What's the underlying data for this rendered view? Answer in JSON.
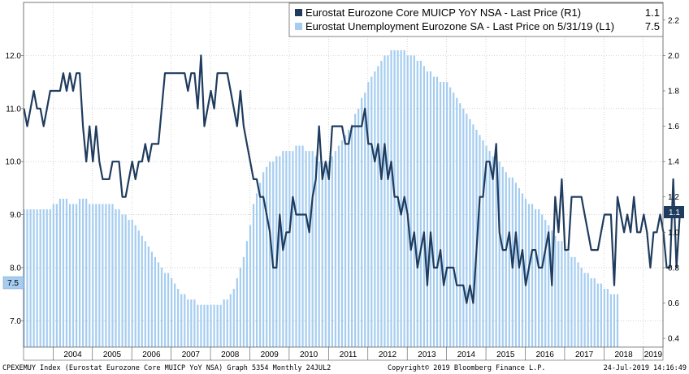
{
  "chart_data": {
    "type": "bar+line",
    "legend": {
      "placement": "top-right",
      "entries": [
        {
          "label": "Eurostat Eurozone Core MUICP YoY NSA - Last Price (R1)",
          "value": "1.1",
          "color": "#1f3c5e"
        },
        {
          "label": "Eurostat Unemployment Eurozone SA - Last Price on 5/31/19 (L1)",
          "value": "7.5",
          "color": "#a6cdf0"
        }
      ]
    },
    "x_axis": {
      "labels": [
        "2004",
        "2005",
        "2006",
        "2007",
        "2008",
        "2009",
        "2010",
        "2011",
        "2012",
        "2013",
        "2014",
        "2015",
        "2016",
        "2017",
        "2018",
        "2019"
      ],
      "start": "2003-04",
      "frequency": "monthly"
    },
    "left_axis": {
      "ylim": [
        6.5,
        13.0
      ],
      "ticks": [
        "7.0",
        "8.0",
        "9.0",
        "10.0",
        "11.0",
        "12.0"
      ],
      "last_value_tag": "7.5"
    },
    "right_axis": {
      "ylim": [
        0.35,
        2.3
      ],
      "ticks": [
        "0.4",
        "0.6",
        "0.8",
        "1.0",
        "1.2",
        "1.4",
        "1.6",
        "1.8",
        "2.0",
        "2.2"
      ],
      "last_value_tag": "1.1"
    },
    "grid": true,
    "series": [
      {
        "name": "Eurostat Unemployment Eurozone SA",
        "type": "bar",
        "axis": "left",
        "color": "#a6cdf0",
        "start": "2003-04",
        "values": [
          9.1,
          9.1,
          9.1,
          9.1,
          9.1,
          9.1,
          9.1,
          9.1,
          9.1,
          9.2,
          9.2,
          9.3,
          9.3,
          9.3,
          9.2,
          9.2,
          9.2,
          9.3,
          9.3,
          9.3,
          9.2,
          9.2,
          9.2,
          9.2,
          9.2,
          9.2,
          9.2,
          9.2,
          9.1,
          9.1,
          9.0,
          9.0,
          8.9,
          8.9,
          8.8,
          8.7,
          8.6,
          8.5,
          8.4,
          8.3,
          8.2,
          8.1,
          8.0,
          7.9,
          7.9,
          7.8,
          7.7,
          7.6,
          7.5,
          7.5,
          7.4,
          7.4,
          7.4,
          7.3,
          7.3,
          7.3,
          7.3,
          7.3,
          7.3,
          7.3,
          7.3,
          7.4,
          7.4,
          7.5,
          7.6,
          7.8,
          8.0,
          8.2,
          8.5,
          8.8,
          9.2,
          9.4,
          9.6,
          9.8,
          9.9,
          10.0,
          10.0,
          10.1,
          10.1,
          10.2,
          10.2,
          10.2,
          10.2,
          10.3,
          10.3,
          10.3,
          10.2,
          10.2,
          10.2,
          10.1,
          10.0,
          10.0,
          10.0,
          10.0,
          10.1,
          10.2,
          10.3,
          10.4,
          10.5,
          10.6,
          10.7,
          10.9,
          11.0,
          11.2,
          11.3,
          11.5,
          11.6,
          11.7,
          11.8,
          11.9,
          12.0,
          12.0,
          12.1,
          12.1,
          12.1,
          12.1,
          12.1,
          12.0,
          12.0,
          12.0,
          11.9,
          11.9,
          11.8,
          11.7,
          11.7,
          11.6,
          11.6,
          11.5,
          11.5,
          11.5,
          11.4,
          11.3,
          11.2,
          11.1,
          11.0,
          10.9,
          10.8,
          10.7,
          10.6,
          10.5,
          10.4,
          10.3,
          10.2,
          10.1,
          10.1,
          10.0,
          9.9,
          9.8,
          9.7,
          9.7,
          9.6,
          9.5,
          9.4,
          9.3,
          9.2,
          9.2,
          9.1,
          9.1,
          9.0,
          8.9,
          8.8,
          8.7,
          8.6,
          8.5,
          8.5,
          8.4,
          8.3,
          8.2,
          8.2,
          8.1,
          8.0,
          7.9,
          7.9,
          7.8,
          7.8,
          7.7,
          7.7,
          7.6,
          7.6,
          7.5,
          7.5,
          7.5
        ]
      },
      {
        "name": "Eurostat Eurozone Core MUICP YoY NSA",
        "type": "line",
        "axis": "right",
        "color": "#1f3c5e",
        "start": "2003-04",
        "values": [
          1.7,
          1.6,
          1.7,
          1.8,
          1.7,
          1.7,
          1.6,
          1.7,
          1.8,
          1.8,
          1.8,
          1.8,
          1.9,
          1.8,
          1.9,
          1.8,
          1.9,
          1.9,
          1.6,
          1.4,
          1.6,
          1.4,
          1.6,
          1.4,
          1.3,
          1.3,
          1.3,
          1.4,
          1.4,
          1.4,
          1.2,
          1.2,
          1.3,
          1.4,
          1.3,
          1.4,
          1.4,
          1.5,
          1.4,
          1.5,
          1.5,
          1.5,
          1.7,
          1.9,
          1.9,
          1.9,
          1.9,
          1.9,
          1.9,
          1.9,
          1.8,
          1.9,
          1.9,
          1.7,
          2.0,
          1.6,
          1.7,
          1.8,
          1.7,
          1.9,
          1.9,
          1.9,
          1.9,
          1.8,
          1.7,
          1.6,
          1.8,
          1.6,
          1.5,
          1.4,
          1.3,
          1.3,
          1.2,
          1.2,
          1.1,
          1.0,
          0.8,
          0.8,
          1.1,
          0.9,
          1.0,
          1.0,
          1.2,
          1.1,
          1.1,
          1.1,
          1.1,
          1.0,
          1.2,
          1.3,
          1.6,
          1.3,
          1.4,
          1.3,
          1.6,
          1.6,
          1.6,
          1.6,
          1.5,
          1.5,
          1.6,
          1.6,
          1.6,
          1.6,
          1.7,
          1.5,
          1.5,
          1.4,
          1.5,
          1.3,
          1.5,
          1.3,
          1.4,
          1.2,
          1.2,
          1.1,
          1.2,
          1.1,
          0.9,
          1.0,
          0.8,
          0.9,
          1.0,
          0.7,
          1.0,
          0.8,
          0.8,
          0.9,
          0.7,
          0.8,
          0.8,
          0.8,
          0.7,
          0.7,
          0.7,
          0.6,
          0.7,
          0.6,
          0.9,
          1.2,
          1.2,
          1.4,
          1.4,
          1.3,
          1.5,
          1.0,
          0.9,
          0.9,
          1.0,
          0.8,
          1.0,
          0.8,
          0.9,
          0.7,
          0.8,
          0.9,
          0.9,
          0.8,
          0.8,
          0.9,
          1.0,
          0.7,
          1.2,
          1.0,
          1.3,
          0.9,
          0.9,
          1.2,
          1.2,
          1.2,
          1.2,
          1.1,
          1.0,
          0.9,
          0.9,
          0.9,
          1.0,
          1.1,
          1.1,
          1.1,
          0.7,
          1.2,
          1.1,
          1.0,
          1.1,
          1.0,
          1.2,
          1.0,
          1.0,
          1.1,
          1.0,
          0.8,
          1.0,
          1.0,
          1.1,
          1.0,
          0.8,
          0.8,
          1.3,
          0.8,
          1.1
        ]
      }
    ]
  },
  "footer": {
    "left": "CPEXEMUY Index (Eurostat Eurozone Core MUICP YoY NSA) Graph 5354  Monthly 24JUL2",
    "center": "Copyright© 2019 Bloomberg Finance L.P.",
    "right": "24-Jul-2019 14:16:49"
  }
}
